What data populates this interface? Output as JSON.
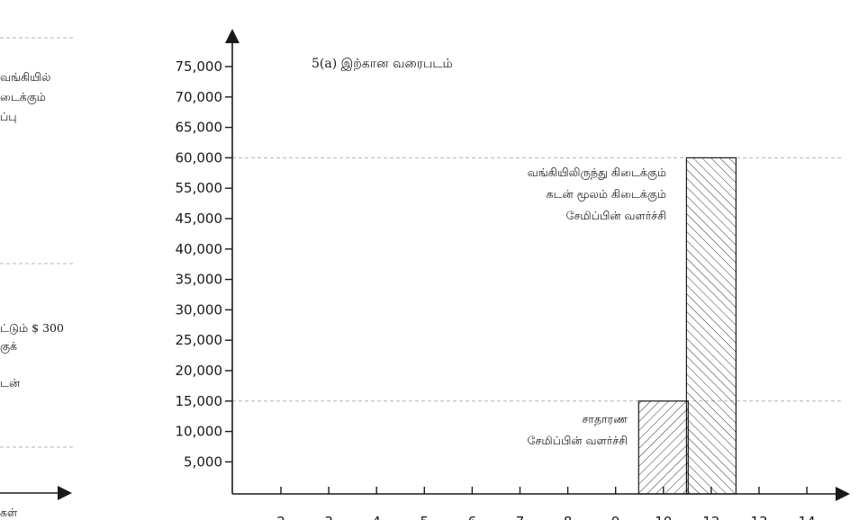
{
  "chart_data": {
    "type": "bar",
    "title": "5(a) இற்கான வரைபடம்",
    "xlabel": "",
    "ylabel": "",
    "y_ticks": [
      "5,000",
      "10,000",
      "15,000",
      "20,000",
      "25,000",
      "30,000",
      "35,000",
      "40,000",
      "45,000",
      "55,000",
      "60,000",
      "65,000",
      "70,000",
      "75,000"
    ],
    "x_ticks": [
      "2",
      "3",
      "4",
      "5",
      "6",
      "7",
      "8",
      "9",
      "10",
      "12",
      "13",
      "14"
    ],
    "bars": [
      {
        "category": "10",
        "value": 15000,
        "hatch": "forward"
      },
      {
        "category": "12",
        "value": 60000,
        "hatch": "backward"
      }
    ],
    "reference_lines": [
      15000,
      60000
    ],
    "annotations": [
      {
        "lines": [
          "வங்கியிலிருந்து கிடைக்கும்",
          "கடன் மூலம் கிடைக்கும்",
          "சேமிப்பின் வளர்ச்சி"
        ]
      },
      {
        "lines": [
          "சாதாரண",
          "சேமிப்பின் வளர்ச்சி"
        ]
      }
    ],
    "grid": false,
    "legend": "none"
  },
  "side_panel": {
    "fragment_1": [
      "வங்கியில்",
      "டைக்கும்",
      "ப்பு"
    ],
    "fragment_2": [
      "ட்டும்  $ 300",
      "குக்",
      "டன்"
    ],
    "fragment_3": "கள்"
  }
}
